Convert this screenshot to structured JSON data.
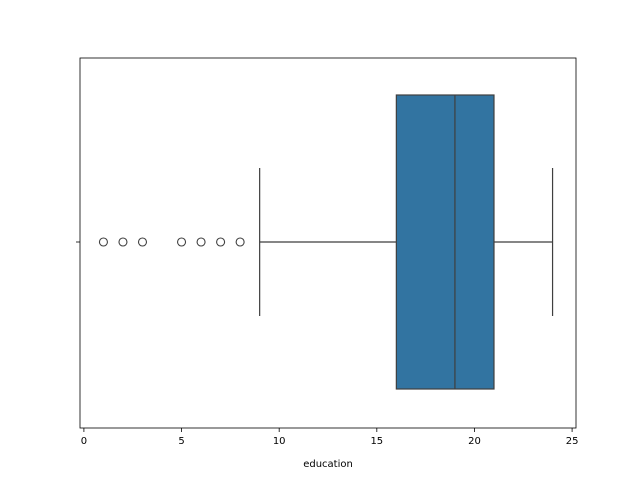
{
  "chart_data": {
    "type": "box",
    "orientation": "horizontal",
    "xlabel": "education",
    "xlim": [
      -0.2,
      25.2
    ],
    "xticks": [
      0,
      5,
      10,
      15,
      20,
      25
    ],
    "xtick_labels": [
      "0",
      "5",
      "10",
      "15",
      "20",
      "25"
    ],
    "grid": false,
    "legend": "none",
    "box": {
      "whisker_low": 9,
      "q1": 16,
      "median": 19,
      "q3": 21,
      "whisker_high": 24,
      "outliers": [
        1,
        2,
        3,
        5,
        6,
        7,
        8
      ]
    },
    "colors": {
      "box_fill": "#3274a1",
      "lines": "#3f3f3f",
      "axes": "#000000"
    }
  }
}
